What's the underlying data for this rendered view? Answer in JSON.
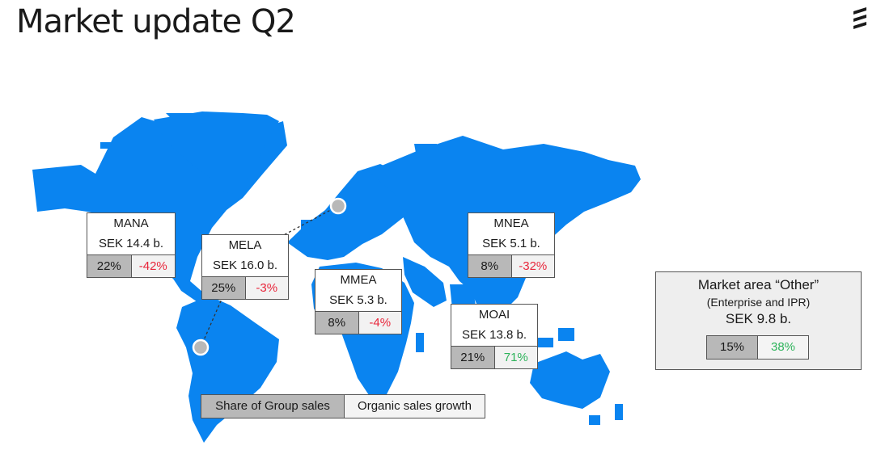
{
  "title": "Market update Q2",
  "colors": {
    "map": "#0a84f0",
    "negative": "#e8263b",
    "positive": "#2eb35b",
    "share_bg": "#b8b8b8"
  },
  "regions": {
    "mana": {
      "name": "MANA",
      "sales": "SEK 14.4 b.",
      "share": "22%",
      "growth": "-42%"
    },
    "mela": {
      "name": "MELA",
      "sales": "SEK 16.0 b.",
      "share": "25%",
      "growth": "-3%"
    },
    "mmea": {
      "name": "MMEA",
      "sales": "SEK 5.3 b.",
      "share": "8%",
      "growth": "-4%"
    },
    "mnea": {
      "name": "MNEA",
      "sales": "SEK 5.1 b.",
      "share": "8%",
      "growth": "-32%"
    },
    "moai": {
      "name": "MOAI",
      "sales": "SEK 13.8 b.",
      "share": "21%",
      "growth": "71%"
    }
  },
  "other": {
    "title": "Market area “Other”",
    "subtitle": "(Enterprise and IPR)",
    "sales": "SEK 9.8 b.",
    "share": "15%",
    "growth": "38%"
  },
  "legend": {
    "share_label": "Share of Group sales",
    "growth_label": "Organic sales growth"
  },
  "logo_icon": "ericsson-logo-icon"
}
